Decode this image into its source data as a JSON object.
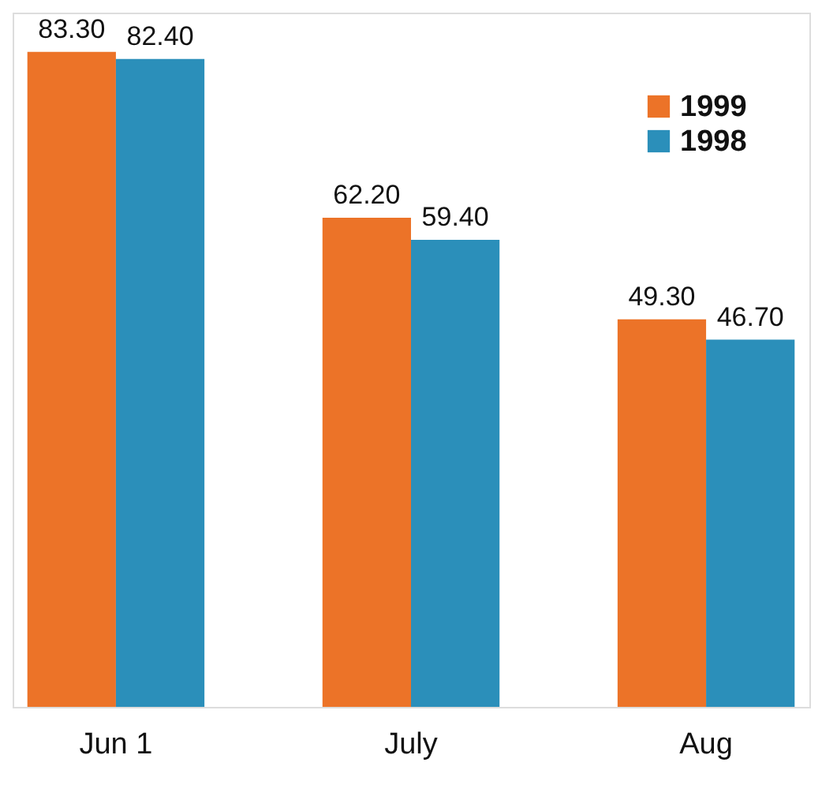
{
  "chart_data": {
    "type": "bar",
    "categories": [
      "Jun 1",
      "July",
      "Aug"
    ],
    "legend": "top right",
    "grid": false,
    "series": [
      {
        "name": "1999",
        "color": "#ec7328",
        "values": [
          83.3,
          62.2,
          49.3
        ],
        "value_labels": [
          "83.30",
          "62.20",
          "49.30"
        ]
      },
      {
        "name": "1998",
        "color": "#2b8fba",
        "values": [
          82.4,
          59.4,
          46.7
        ],
        "value_labels": [
          "82.40",
          "59.40",
          "46.70"
        ]
      }
    ]
  }
}
